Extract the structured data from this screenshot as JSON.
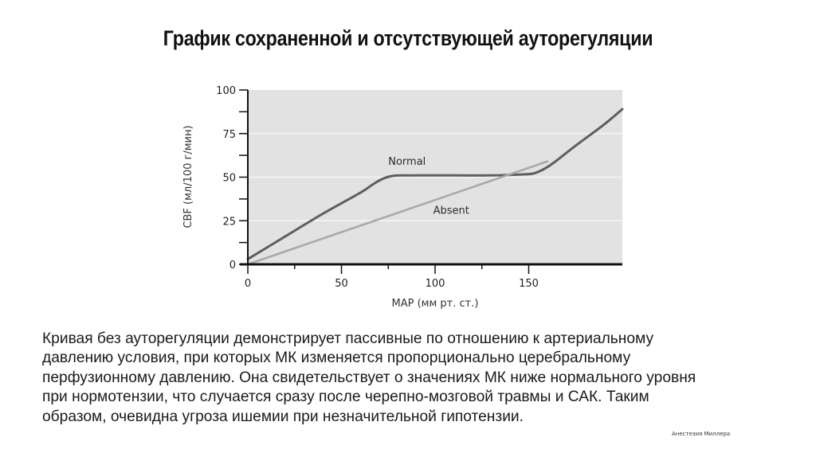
{
  "slide": {
    "title": "График сохраненной и отсутствующей ауторегуляции",
    "description": "Кривая без ауторегуляции демонстрирует пассивные по отношению к артериальному давлению условия, при которых МК изменяется пропорционально церебральному перфузионному давлению. Она свидетельствует о значениях МК ниже нормального уровня при нормотензии, что случается сразу после черепно-мозговой травмы и САК. Таким образом, очевидна угроза ишемии при незначительной гипотензии.",
    "description_lines": [
      "Кривая без ауторегуляции демонстрирует пассивные по отношению к артериальному",
      "давлению условия, при которых МК изменяется пропорционально церебральному",
      "перфузионному давлению. Она свидетельствует о значениях МК ниже нормального уровня",
      "при нормотензии, что случается сразу после черепно-мозговой травмы и САК. Таким",
      "образом, очевидна угроза ишемии при незначительной гипотензии."
    ],
    "source": "Анестезия Миллера"
  },
  "chart_data": {
    "type": "line",
    "title": "График сохраненной и отсутствующей ауторегуляции",
    "xlabel": "MAP (мм рт. ст.)",
    "ylabel": "CBF (мл/100 г/мин)",
    "xlim": [
      0,
      200
    ],
    "ylim": [
      0,
      100
    ],
    "x_ticks": [
      0,
      25,
      50,
      75,
      100,
      125,
      150
    ],
    "x_tick_labels": [
      "0",
      "50",
      "100",
      "150"
    ],
    "x_labeled_ticks": [
      0,
      50,
      100,
      150
    ],
    "y_ticks": [
      0,
      12.5,
      25,
      37.5,
      50,
      62.5,
      75,
      87.5,
      100
    ],
    "y_tick_labels": [
      "0",
      "25",
      "50",
      "75",
      "100"
    ],
    "y_labeled_ticks": [
      0,
      25,
      50,
      75,
      100
    ],
    "grid": {
      "horizontal": true,
      "vertical": false,
      "lines_at": [
        25,
        50,
        75
      ]
    },
    "legend": "inline labels",
    "background": "#e2e2e2",
    "series": [
      {
        "name": "Normal",
        "color": "#5e5e5e",
        "label_pos": [
          75,
          57
        ],
        "points": [
          [
            0,
            3
          ],
          [
            20,
            16
          ],
          [
            40,
            29
          ],
          [
            60,
            41
          ],
          [
            67,
            46
          ],
          [
            72,
            49
          ],
          [
            78,
            50.8
          ],
          [
            90,
            51
          ],
          [
            110,
            51
          ],
          [
            130,
            51
          ],
          [
            145,
            51.5
          ],
          [
            152,
            52
          ],
          [
            157,
            54
          ],
          [
            163,
            58
          ],
          [
            175,
            68
          ],
          [
            190,
            80
          ],
          [
            200,
            89
          ]
        ]
      },
      {
        "name": "Absent",
        "color": "#a9a9a9",
        "label_pos": [
          99,
          29
        ],
        "points": [
          [
            0,
            0
          ],
          [
            40,
            14.8
          ],
          [
            80,
            29.5
          ],
          [
            120,
            44.3
          ],
          [
            160,
            59
          ]
        ]
      }
    ]
  }
}
